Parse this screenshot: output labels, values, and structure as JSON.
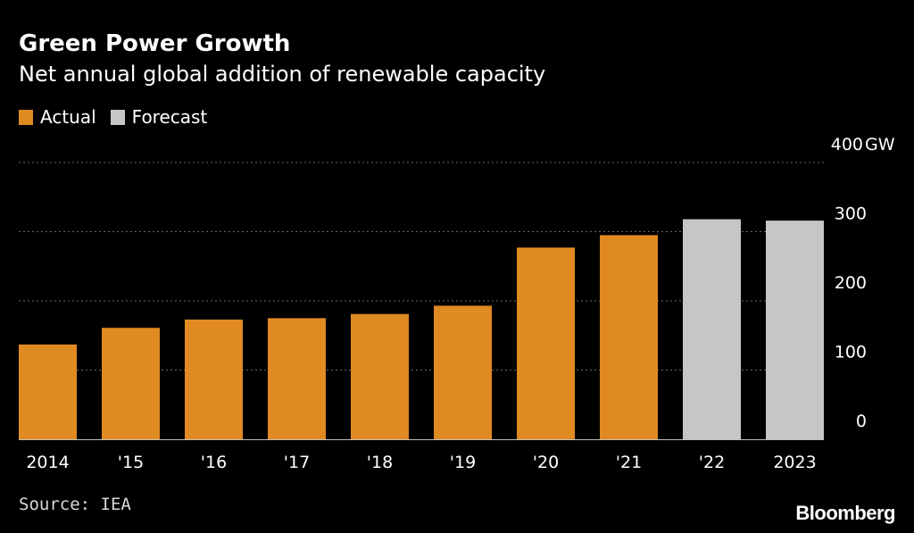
{
  "colors": {
    "background": "#000000",
    "actual": "#e08a22",
    "forecast": "#c6c6c6",
    "grid": "#6a6a6a",
    "text": "#ffffff"
  },
  "header": {
    "title": "Green Power Growth",
    "subtitle": "Net annual global addition of renewable capacity"
  },
  "legend": {
    "actual_label": "Actual",
    "forecast_label": "Forecast"
  },
  "footer": {
    "source": "Source: IEA",
    "brand": "Bloomberg"
  },
  "chart_data": {
    "type": "bar",
    "title": "Green Power Growth",
    "subtitle": "Net annual global addition of renewable capacity",
    "categories": [
      "2014",
      "'15",
      "'16",
      "'17",
      "'18",
      "'19",
      "'20",
      "'21",
      "'22",
      "2023"
    ],
    "values": [
      137,
      161,
      173,
      175,
      181,
      193,
      277,
      295,
      318,
      316
    ],
    "status": [
      "Actual",
      "Actual",
      "Actual",
      "Actual",
      "Actual",
      "Actual",
      "Actual",
      "Actual",
      "Forecast",
      "Forecast"
    ],
    "legend": [
      "Actual",
      "Forecast"
    ],
    "legend_position": "top-left",
    "yticks": [
      0,
      100,
      200,
      300,
      400
    ],
    "ytick_labels": [
      "0",
      "100",
      "200",
      "300",
      "400"
    ],
    "y_unit": "GW",
    "ylim": [
      0,
      400
    ],
    "grid": true,
    "y_axis_side": "right"
  }
}
